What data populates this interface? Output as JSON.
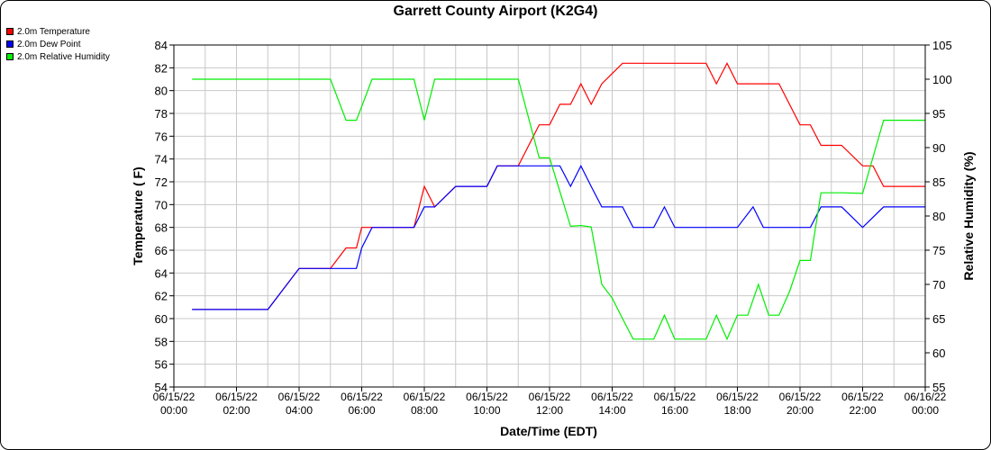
{
  "chart_data": {
    "type": "line",
    "title": "Garrett County Airport (K2G4)",
    "xlabel": "Date/Time (EDT)",
    "ylabel_left": "Temperature ( F)",
    "ylabel_right": "Relative Humidity (%)",
    "ylim_left": [
      54,
      84
    ],
    "ylim_right": [
      55,
      105
    ],
    "xlim_hours": [
      0,
      24
    ],
    "grid": true,
    "legend_position": "top-left",
    "x_tick_labels": [
      [
        "06/15/22",
        "00:00"
      ],
      [
        "06/15/22",
        "02:00"
      ],
      [
        "06/15/22",
        "04:00"
      ],
      [
        "06/15/22",
        "06:00"
      ],
      [
        "06/15/22",
        "08:00"
      ],
      [
        "06/15/22",
        "10:00"
      ],
      [
        "06/15/22",
        "12:00"
      ],
      [
        "06/15/22",
        "14:00"
      ],
      [
        "06/15/22",
        "16:00"
      ],
      [
        "06/15/22",
        "18:00"
      ],
      [
        "06/15/22",
        "20:00"
      ],
      [
        "06/15/22",
        "22:00"
      ],
      [
        "06/16/22",
        "00:00"
      ]
    ],
    "y_left_ticks": [
      54,
      56,
      58,
      60,
      62,
      64,
      66,
      68,
      70,
      72,
      74,
      76,
      78,
      80,
      82,
      84
    ],
    "y_right_ticks": [
      55,
      60,
      65,
      70,
      75,
      80,
      85,
      90,
      95,
      100,
      105
    ],
    "series": [
      {
        "name": "2.0m Temperature",
        "axis": "left",
        "color": "#ff0000",
        "points": [
          [
            0.58,
            60.8
          ],
          [
            2.0,
            60.8
          ],
          [
            3.0,
            60.8
          ],
          [
            4.0,
            64.4
          ],
          [
            5.0,
            64.4
          ],
          [
            5.5,
            66.2
          ],
          [
            5.83,
            66.2
          ],
          [
            6.0,
            68.0
          ],
          [
            7.0,
            68.0
          ],
          [
            7.67,
            68.0
          ],
          [
            8.0,
            71.6
          ],
          [
            8.33,
            69.8
          ],
          [
            9.0,
            71.6
          ],
          [
            10.0,
            71.6
          ],
          [
            10.33,
            73.4
          ],
          [
            11.0,
            73.4
          ],
          [
            11.67,
            77.0
          ],
          [
            12.0,
            77.0
          ],
          [
            12.33,
            78.8
          ],
          [
            12.67,
            78.8
          ],
          [
            13.0,
            80.6
          ],
          [
            13.33,
            78.8
          ],
          [
            13.67,
            80.6
          ],
          [
            14.0,
            81.5
          ],
          [
            14.33,
            82.4
          ],
          [
            15.0,
            82.4
          ],
          [
            16.0,
            82.4
          ],
          [
            17.0,
            82.4
          ],
          [
            17.33,
            80.6
          ],
          [
            17.67,
            82.4
          ],
          [
            18.0,
            80.6
          ],
          [
            19.0,
            80.6
          ],
          [
            19.33,
            80.6
          ],
          [
            20.0,
            77.0
          ],
          [
            20.33,
            77.0
          ],
          [
            20.67,
            75.2
          ],
          [
            21.33,
            75.2
          ],
          [
            22.0,
            73.4
          ],
          [
            22.33,
            73.4
          ],
          [
            22.67,
            71.6
          ],
          [
            23.0,
            71.6
          ],
          [
            24.0,
            71.6
          ]
        ]
      },
      {
        "name": "2.0m Dew Point",
        "axis": "left",
        "color": "#0000ff",
        "points": [
          [
            0.58,
            60.8
          ],
          [
            2.0,
            60.8
          ],
          [
            3.0,
            60.8
          ],
          [
            4.0,
            64.4
          ],
          [
            5.0,
            64.4
          ],
          [
            5.83,
            64.4
          ],
          [
            6.0,
            66.2
          ],
          [
            6.33,
            68.0
          ],
          [
            7.0,
            68.0
          ],
          [
            7.67,
            68.0
          ],
          [
            8.0,
            69.8
          ],
          [
            8.33,
            69.8
          ],
          [
            9.0,
            71.6
          ],
          [
            10.0,
            71.6
          ],
          [
            10.33,
            73.4
          ],
          [
            11.0,
            73.4
          ],
          [
            12.0,
            73.4
          ],
          [
            12.33,
            73.4
          ],
          [
            12.67,
            71.6
          ],
          [
            13.0,
            73.4
          ],
          [
            13.33,
            71.6
          ],
          [
            13.67,
            69.8
          ],
          [
            14.0,
            69.8
          ],
          [
            14.33,
            69.8
          ],
          [
            14.67,
            68.0
          ],
          [
            15.0,
            68.0
          ],
          [
            15.33,
            68.0
          ],
          [
            15.67,
            69.8
          ],
          [
            16.0,
            68.0
          ],
          [
            17.0,
            68.0
          ],
          [
            17.67,
            68.0
          ],
          [
            18.0,
            68.0
          ],
          [
            18.5,
            69.8
          ],
          [
            18.83,
            68.0
          ],
          [
            19.0,
            68.0
          ],
          [
            20.0,
            68.0
          ],
          [
            20.33,
            68.0
          ],
          [
            20.67,
            69.8
          ],
          [
            21.33,
            69.8
          ],
          [
            22.0,
            68.0
          ],
          [
            22.67,
            69.8
          ],
          [
            23.0,
            69.8
          ],
          [
            24.0,
            69.8
          ]
        ]
      },
      {
        "name": "2.0m Relative Humidity",
        "axis": "right",
        "color": "#00ee00",
        "points": [
          [
            0.58,
            100.0
          ],
          [
            2.0,
            100.0
          ],
          [
            3.0,
            100.0
          ],
          [
            4.0,
            100.0
          ],
          [
            5.0,
            100.0
          ],
          [
            5.5,
            94.0
          ],
          [
            5.83,
            94.0
          ],
          [
            6.0,
            96.0
          ],
          [
            6.33,
            100.0
          ],
          [
            7.0,
            100.0
          ],
          [
            7.67,
            100.0
          ],
          [
            8.0,
            94.0
          ],
          [
            8.33,
            100.0
          ],
          [
            9.0,
            100.0
          ],
          [
            10.0,
            100.0
          ],
          [
            11.0,
            100.0
          ],
          [
            11.67,
            88.5
          ],
          [
            12.0,
            88.5
          ],
          [
            12.67,
            78.5
          ],
          [
            13.0,
            78.6
          ],
          [
            13.33,
            78.4
          ],
          [
            13.67,
            70.0
          ],
          [
            14.0,
            68.0
          ],
          [
            14.33,
            65.0
          ],
          [
            14.67,
            62.0
          ],
          [
            15.0,
            62.0
          ],
          [
            15.33,
            62.0
          ],
          [
            15.67,
            65.5
          ],
          [
            16.0,
            62.0
          ],
          [
            17.0,
            62.0
          ],
          [
            17.33,
            65.5
          ],
          [
            17.67,
            62.0
          ],
          [
            18.0,
            65.5
          ],
          [
            18.33,
            65.5
          ],
          [
            18.67,
            70.0
          ],
          [
            19.0,
            65.5
          ],
          [
            19.33,
            65.5
          ],
          [
            19.67,
            69.0
          ],
          [
            20.0,
            73.5
          ],
          [
            20.33,
            73.5
          ],
          [
            20.67,
            83.4
          ],
          [
            21.0,
            83.4
          ],
          [
            21.33,
            83.4
          ],
          [
            22.0,
            83.3
          ],
          [
            22.67,
            94.0
          ],
          [
            23.0,
            94.0
          ],
          [
            24.0,
            94.0
          ]
        ]
      }
    ]
  }
}
